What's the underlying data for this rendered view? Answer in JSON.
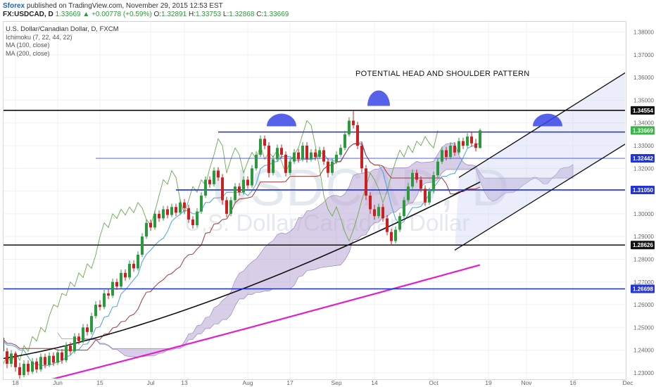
{
  "header": {
    "user": "Sforex",
    "published": "published on TradingView.com, November 29, 2015 12:53 EST",
    "symbol": "FX:USDCAD, D",
    "last": "1.33669",
    "change": "▲ +0.00778 (+0.59%)",
    "o_label": "O:",
    "o": "1.32891",
    "h_label": "H:",
    "h": "1.33753",
    "l_label": "L:",
    "l": "1.32868",
    "c_label": "C:",
    "c": "1.33669"
  },
  "legend": {
    "title": "U.S. Dollar/Canadian Dollar, D, FXCM",
    "ind1": "Ichimoku (7, 22, 44, 22)",
    "ind2": "MA (100, close)",
    "ind3": "MA (200, close)"
  },
  "watermark": {
    "symbol": "USDCAD, D",
    "description": "U.S. Dollar/Canadian Dollar"
  },
  "annotation": "POTENTIAL HEAD AND SHOULDER PATTERN",
  "colors": {
    "bull": "#2a9a3c",
    "bear": "#cc1f1f",
    "horizontal_blue": "#1a2fd6",
    "horizontal_black": "#111111",
    "cloud_fill": "#b9a6d3",
    "ma100": "#111111",
    "ma200": "#e020d0",
    "tenkan": "#4aa3e0",
    "kijun": "#a03a3a",
    "chikou": "#6aa84f",
    "hs_cap": "#3a46e6"
  },
  "chart_data": {
    "type": "candlestick",
    "title": "U.S. Dollar/Canadian Dollar, D, FXCM",
    "ylim": [
      1.2275,
      1.3845
    ],
    "y_ticks": [
      "1.38000",
      "1.37000",
      "1.36000",
      "1.35000",
      "1.34000",
      "1.33000",
      "1.32000",
      "1.31000",
      "1.30000",
      "1.29000",
      "1.28000",
      "1.27000",
      "1.26000",
      "1.25000",
      "1.24000",
      "1.23000"
    ],
    "x_ticks": [
      {
        "label": "18",
        "day": 0
      },
      {
        "label": "Jun",
        "day": 10
      },
      {
        "label": "15",
        "day": 20
      },
      {
        "label": "Jul",
        "day": 32
      },
      {
        "label": "13",
        "day": 40
      },
      {
        "label": "Aug",
        "day": 55
      },
      {
        "label": "17",
        "day": 65
      },
      {
        "label": "Sep",
        "day": 76
      },
      {
        "label": "14",
        "day": 85
      },
      {
        "label": "Oct",
        "day": 99
      },
      {
        "label": "19",
        "day": 112
      },
      {
        "label": "Nov",
        "day": 121
      },
      {
        "label": "16",
        "day": 132
      },
      {
        "label": "Dec",
        "day": 145
      }
    ],
    "price_labels": [
      {
        "value": 1.34554,
        "text": "1.34554",
        "style": "black"
      },
      {
        "value": 1.33669,
        "text": "1.33669",
        "style": "green"
      },
      {
        "value": 1.32442,
        "text": "1.32442",
        "style": "blue"
      },
      {
        "value": 1.3105,
        "text": "1.31050",
        "style": "blue"
      },
      {
        "value": 1.28626,
        "text": "1.28626",
        "style": "black"
      },
      {
        "value": 1.26698,
        "text": "1.26698",
        "style": "blue"
      }
    ],
    "horizontal_lines": [
      {
        "value": 1.34554,
        "color": "black",
        "from_day": -6
      },
      {
        "value": 1.336,
        "color": "blue",
        "from_day": 60
      },
      {
        "value": 1.32442,
        "color": "blue_thin",
        "from_day": 31
      },
      {
        "value": 1.3105,
        "color": "blue",
        "from_day": 50
      },
      {
        "value": 1.28626,
        "color": "black",
        "from_day": -6
      },
      {
        "value": 1.26698,
        "color": "blue",
        "from_day": -6
      }
    ],
    "channel": [
      {
        "from": [
          105,
          1.316
        ],
        "to": [
          152,
          1.371
        ]
      },
      {
        "from": [
          104,
          1.284
        ],
        "to": [
          152,
          1.3395
        ]
      }
    ],
    "hs_caps": [
      {
        "day": 75,
        "value": 1.3385
      },
      {
        "day": 98,
        "value": 1.3475
      },
      {
        "day": 138,
        "value": 1.3385
      }
    ],
    "candles": [
      [
        1.251,
        1.2435,
        1.241,
        1.254
      ],
      [
        1.2435,
        1.2385,
        1.236,
        1.2455
      ],
      [
        1.2385,
        1.24,
        1.2365,
        1.2415
      ],
      [
        1.24,
        1.245,
        1.239,
        1.247
      ],
      [
        1.245,
        1.241,
        1.2395,
        1.247
      ],
      [
        1.241,
        1.2375,
        1.236,
        1.2425
      ],
      [
        1.2375,
        1.244,
        1.2365,
        1.2455
      ],
      [
        1.244,
        1.251,
        1.243,
        1.2525
      ],
      [
        1.251,
        1.2455,
        1.244,
        1.2525
      ],
      [
        1.2455,
        1.2395,
        1.238,
        1.2465
      ],
      [
        1.2395,
        1.234,
        1.232,
        1.241
      ],
      [
        1.234,
        1.2385,
        1.2325,
        1.24
      ],
      [
        1.2385,
        1.2325,
        1.2305,
        1.2395
      ],
      [
        1.2325,
        1.229,
        1.2275,
        1.2345
      ],
      [
        1.229,
        1.234,
        1.228,
        1.2355
      ],
      [
        1.234,
        1.2305,
        1.229,
        1.2355
      ],
      [
        1.2305,
        1.235,
        1.2295,
        1.2365
      ],
      [
        1.235,
        1.2315,
        1.23,
        1.2365
      ],
      [
        1.2315,
        1.237,
        1.2305,
        1.2385
      ],
      [
        1.237,
        1.2335,
        1.232,
        1.2385
      ],
      [
        1.2335,
        1.2375,
        1.2325,
        1.239
      ],
      [
        1.2375,
        1.2345,
        1.233,
        1.239
      ],
      [
        1.2345,
        1.239,
        1.2335,
        1.2405
      ],
      [
        1.239,
        1.2355,
        1.234,
        1.2405
      ],
      [
        1.2355,
        1.242,
        1.2345,
        1.2435
      ],
      [
        1.242,
        1.2395,
        1.238,
        1.2435
      ],
      [
        1.2395,
        1.246,
        1.2385,
        1.2475
      ],
      [
        1.246,
        1.244,
        1.2425,
        1.2475
      ],
      [
        1.244,
        1.25,
        1.243,
        1.2515
      ],
      [
        1.25,
        1.248,
        1.2465,
        1.2515
      ],
      [
        1.248,
        1.255,
        1.247,
        1.2565
      ],
      [
        1.255,
        1.26,
        1.254,
        1.2615
      ],
      [
        1.26,
        1.259,
        1.2575,
        1.262
      ],
      [
        1.259,
        1.265,
        1.258,
        1.2665
      ],
      [
        1.265,
        1.264,
        1.2625,
        1.267
      ],
      [
        1.264,
        1.27,
        1.263,
        1.2715
      ],
      [
        1.27,
        1.268,
        1.2665,
        1.2715
      ],
      [
        1.268,
        1.274,
        1.267,
        1.2755
      ],
      [
        1.274,
        1.272,
        1.2705,
        1.2755
      ],
      [
        1.272,
        1.278,
        1.271,
        1.2795
      ],
      [
        1.278,
        1.276,
        1.2745,
        1.2795
      ],
      [
        1.276,
        1.282,
        1.275,
        1.2835
      ],
      [
        1.282,
        1.29,
        1.281,
        1.2915
      ],
      [
        1.29,
        1.296,
        1.289,
        1.2975
      ],
      [
        1.296,
        1.294,
        1.2925,
        1.2975
      ],
      [
        1.294,
        1.3,
        1.293,
        1.3015
      ],
      [
        1.3,
        1.298,
        1.2965,
        1.3015
      ],
      [
        1.298,
        1.302,
        1.297,
        1.3035
      ],
      [
        1.302,
        1.2995,
        1.298,
        1.3035
      ],
      [
        1.2995,
        1.303,
        1.2985,
        1.3045
      ],
      [
        1.303,
        1.3005,
        1.299,
        1.3045
      ],
      [
        1.3005,
        1.305,
        1.2995,
        1.3065
      ],
      [
        1.305,
        1.3025,
        1.301,
        1.3065
      ],
      [
        1.3025,
        1.2975,
        1.296,
        1.304
      ],
      [
        1.2975,
        1.295,
        1.2935,
        1.299
      ],
      [
        1.295,
        1.301,
        1.294,
        1.3025
      ],
      [
        1.301,
        1.308,
        1.3,
        1.3095
      ],
      [
        1.308,
        1.315,
        1.307,
        1.3165
      ],
      [
        1.315,
        1.313,
        1.3115,
        1.3165
      ],
      [
        1.313,
        1.319,
        1.312,
        1.3205
      ],
      [
        1.319,
        1.316,
        1.3145,
        1.3205
      ],
      [
        1.316,
        1.306,
        1.304,
        1.3175
      ],
      [
        1.306,
        1.3,
        1.2985,
        1.3075
      ],
      [
        1.3,
        1.306,
        1.299,
        1.3075
      ],
      [
        1.306,
        1.312,
        1.305,
        1.3135
      ],
      [
        1.312,
        1.3095,
        1.308,
        1.3135
      ],
      [
        1.3095,
        1.315,
        1.3085,
        1.3165
      ],
      [
        1.315,
        1.3125,
        1.311,
        1.3165
      ],
      [
        1.3125,
        1.32,
        1.3115,
        1.3215
      ],
      [
        1.32,
        1.326,
        1.319,
        1.3275
      ],
      [
        1.326,
        1.333,
        1.325,
        1.3345
      ],
      [
        1.333,
        1.33,
        1.3285,
        1.3345
      ],
      [
        1.33,
        1.318,
        1.316,
        1.3315
      ],
      [
        1.318,
        1.324,
        1.317,
        1.3255
      ],
      [
        1.324,
        1.329,
        1.323,
        1.3305
      ],
      [
        1.329,
        1.326,
        1.3245,
        1.3305
      ],
      [
        1.326,
        1.318,
        1.3165,
        1.3275
      ],
      [
        1.318,
        1.323,
        1.317,
        1.3245
      ],
      [
        1.323,
        1.327,
        1.322,
        1.3285
      ],
      [
        1.327,
        1.324,
        1.3225,
        1.3285
      ],
      [
        1.324,
        1.33,
        1.323,
        1.3315
      ],
      [
        1.33,
        1.324,
        1.3225,
        1.3315
      ],
      [
        1.324,
        1.327,
        1.323,
        1.3285
      ],
      [
        1.327,
        1.325,
        1.3235,
        1.3285
      ],
      [
        1.325,
        1.328,
        1.324,
        1.3295
      ],
      [
        1.328,
        1.323,
        1.3215,
        1.3295
      ],
      [
        1.323,
        1.318,
        1.316,
        1.3245
      ],
      [
        1.318,
        1.323,
        1.317,
        1.3245
      ],
      [
        1.323,
        1.326,
        1.322,
        1.3275
      ],
      [
        1.326,
        1.329,
        1.325,
        1.3305
      ],
      [
        1.329,
        1.335,
        1.328,
        1.3365
      ],
      [
        1.335,
        1.341,
        1.334,
        1.3425
      ],
      [
        1.341,
        1.339,
        1.3375,
        1.3455
      ],
      [
        1.339,
        1.33,
        1.3285,
        1.3405
      ],
      [
        1.33,
        1.32,
        1.318,
        1.3315
      ],
      [
        1.32,
        1.308,
        1.306,
        1.3215
      ],
      [
        1.308,
        1.302,
        1.3,
        1.3095
      ],
      [
        1.302,
        1.299,
        1.2975,
        1.304
      ],
      [
        1.299,
        1.303,
        1.298,
        1.3045
      ],
      [
        1.303,
        1.298,
        1.2965,
        1.3045
      ],
      [
        1.298,
        1.292,
        1.2905,
        1.2995
      ],
      [
        1.292,
        1.288,
        1.286,
        1.2935
      ],
      [
        1.288,
        1.293,
        1.287,
        1.2945
      ],
      [
        1.293,
        1.299,
        1.292,
        1.3005
      ],
      [
        1.299,
        1.306,
        1.298,
        1.3075
      ],
      [
        1.306,
        1.312,
        1.305,
        1.3135
      ],
      [
        1.312,
        1.318,
        1.311,
        1.3195
      ],
      [
        1.318,
        1.315,
        1.3135,
        1.3195
      ],
      [
        1.315,
        1.311,
        1.3095,
        1.3165
      ],
      [
        1.311,
        1.305,
        1.3035,
        1.3125
      ],
      [
        1.305,
        1.31,
        1.304,
        1.3115
      ],
      [
        1.31,
        1.317,
        1.309,
        1.3185
      ],
      [
        1.317,
        1.323,
        1.316,
        1.3245
      ],
      [
        1.323,
        1.328,
        1.322,
        1.3295
      ],
      [
        1.328,
        1.325,
        1.3235,
        1.3295
      ],
      [
        1.325,
        1.33,
        1.324,
        1.3315
      ],
      [
        1.33,
        1.327,
        1.3255,
        1.3315
      ],
      [
        1.327,
        1.332,
        1.326,
        1.3335
      ],
      [
        1.332,
        1.33,
        1.3285,
        1.3335
      ],
      [
        1.33,
        1.334,
        1.329,
        1.3355
      ],
      [
        1.334,
        1.331,
        1.3295,
        1.336
      ],
      [
        1.331,
        1.329,
        1.3275,
        1.333
      ],
      [
        1.329,
        1.3367,
        1.3287,
        1.3375
      ]
    ]
  }
}
